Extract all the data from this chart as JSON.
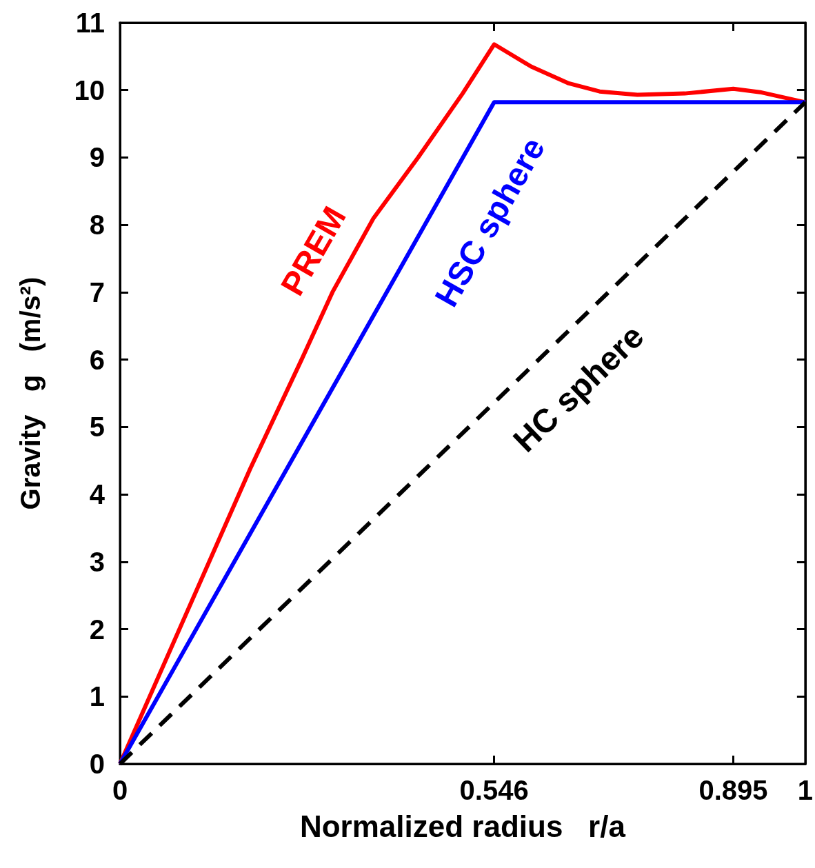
{
  "chart_data": {
    "type": "line",
    "xlabel": "Normalized radius   r/a",
    "ylabel": "Gravity   g   (m/s²)",
    "xlim": [
      0,
      1
    ],
    "xticks": [
      0,
      0.546,
      0.895,
      1
    ],
    "ylim": [
      0,
      11
    ],
    "yticks": [
      0,
      1,
      2,
      3,
      4,
      5,
      6,
      7,
      8,
      9,
      10,
      11
    ],
    "grid": false,
    "legend": false,
    "marker": "none",
    "series": [
      {
        "name": "PREM",
        "color": "#ff0000",
        "x": [
          0,
          0.19,
          0.265,
          0.31,
          0.37,
          0.435,
          0.5,
          0.546,
          0.6,
          0.655,
          0.7,
          0.755,
          0.824,
          0.895,
          0.934,
          1
        ],
        "values": [
          0,
          4.38,
          6.0,
          7.0,
          8.1,
          9.0,
          9.95,
          10.68,
          10.35,
          10.1,
          9.98,
          9.93,
          9.95,
          10.02,
          9.97,
          9.82
        ]
      },
      {
        "name": "HSC sphere",
        "color": "#0000ff",
        "x": [
          0,
          0.546,
          1
        ],
        "values": [
          0,
          9.82,
          9.82
        ]
      },
      {
        "name": "HC sphere",
        "color": "#000000",
        "x": [
          0,
          1
        ],
        "values": [
          0,
          9.82
        ],
        "line_style": "dashed"
      }
    ]
  }
}
